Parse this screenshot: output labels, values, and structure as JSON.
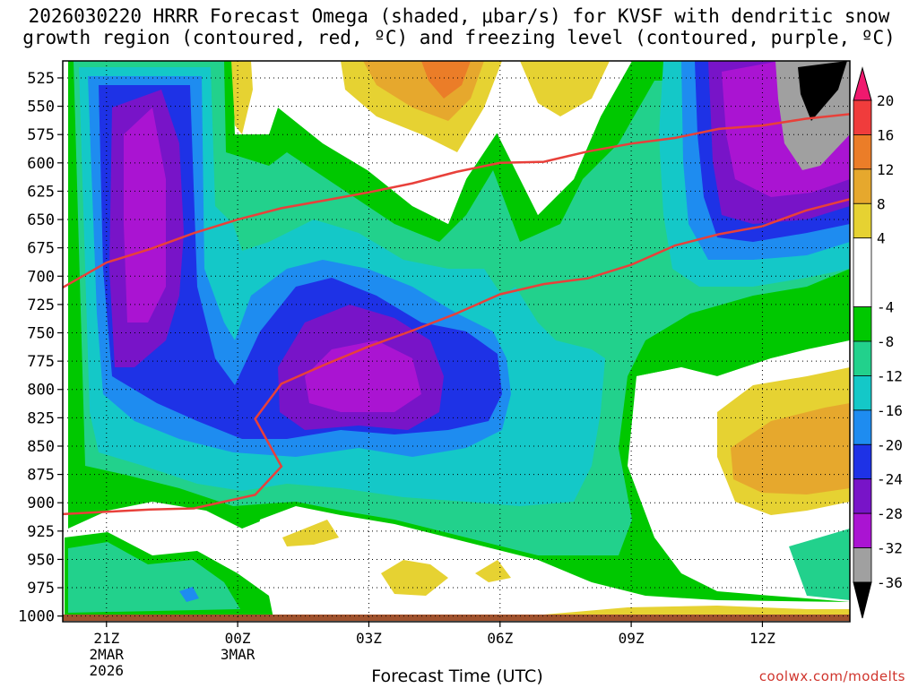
{
  "title": {
    "line1": "2026030220 HRRR Forecast Omega (shaded, μbar/s) for KVSF with dendritic snow",
    "line2": "growth region (contoured, red, ºC) and freezing level (contoured, purple, ºC)"
  },
  "credit": "coolwx.com/modelts",
  "chart_data": {
    "type": "heatmap",
    "title": "2026030220 HRRR Forecast Omega (shaded, μbar/s) for KVSF with dendritic snow growth region (contoured, red, ºC) and freezing level (contoured, purple, ºC)",
    "xlabel": "Forecast Time (UTC)",
    "ylabel": "",
    "y_axis": {
      "ticks": [
        525,
        550,
        575,
        600,
        625,
        650,
        675,
        700,
        725,
        750,
        775,
        800,
        825,
        850,
        875,
        900,
        925,
        950,
        975,
        1000
      ],
      "range": [
        510,
        1005
      ],
      "inverted": true,
      "grid": true
    },
    "x_axis": {
      "tick_labels": [
        {
          "hour": 21,
          "lines": [
            "21Z",
            "2MAR",
            "2026"
          ]
        },
        {
          "hour": 24,
          "lines": [
            "00Z",
            "3MAR"
          ]
        },
        {
          "hour": 27,
          "lines": [
            "03Z"
          ]
        },
        {
          "hour": 30,
          "lines": [
            "06Z"
          ]
        },
        {
          "hour": 33,
          "lines": [
            "09Z"
          ]
        },
        {
          "hour": 36,
          "lines": [
            "12Z"
          ]
        }
      ],
      "range_hours": [
        20,
        38
      ],
      "grid": true
    },
    "colorbar": {
      "ticks": [
        20,
        16,
        12,
        8,
        4,
        -4,
        -8,
        -12,
        -16,
        -20,
        -24,
        -28,
        -32,
        -36
      ],
      "bins": [
        {
          "from": 20,
          "to": 24,
          "color": "#f0196e"
        },
        {
          "from": 16,
          "to": 20,
          "color": "#f03c3c"
        },
        {
          "from": 12,
          "to": 16,
          "color": "#eb7d28"
        },
        {
          "from": 8,
          "to": 12,
          "color": "#e6a82d"
        },
        {
          "from": 4,
          "to": 8,
          "color": "#e6d232"
        },
        {
          "from": -4,
          "to": 4,
          "color": "#ffffff"
        },
        {
          "from": -8,
          "to": -4,
          "color": "#00c800"
        },
        {
          "from": -12,
          "to": -8,
          "color": "#22d18c"
        },
        {
          "from": -16,
          "to": -12,
          "color": "#14c8c8"
        },
        {
          "from": -20,
          "to": -16,
          "color": "#1e8cf0"
        },
        {
          "from": -24,
          "to": -20,
          "color": "#1e32e6"
        },
        {
          "from": -28,
          "to": -24,
          "color": "#7814c8"
        },
        {
          "from": -32,
          "to": -28,
          "color": "#aa14d2"
        },
        {
          "from": -36,
          "to": -32,
          "color": "#a0a0a0"
        },
        {
          "from": -40,
          "to": -36,
          "color": "#000000"
        }
      ]
    },
    "series": [
      {
        "color": "#e8403a",
        "points": [
          [
            20,
            710
          ],
          [
            21,
            688
          ],
          [
            22,
            676
          ],
          [
            23,
            662
          ],
          [
            24,
            650
          ],
          [
            25,
            640
          ],
          [
            26,
            633
          ],
          [
            27,
            626
          ],
          [
            28,
            618
          ],
          [
            29,
            608
          ],
          [
            30,
            600
          ],
          [
            31,
            599
          ],
          [
            32,
            590
          ],
          [
            33,
            583
          ],
          [
            34,
            578
          ],
          [
            35,
            570
          ],
          [
            36,
            567
          ],
          [
            37,
            561
          ],
          [
            38,
            557
          ]
        ]
      },
      {
        "color": "#e8403a",
        "points": [
          [
            20,
            910
          ],
          [
            21,
            908
          ],
          [
            22,
            906
          ],
          [
            23,
            905
          ],
          [
            23.7,
            899
          ],
          [
            24.4,
            893
          ],
          [
            25,
            868
          ],
          [
            24.4,
            826
          ],
          [
            25,
            795
          ],
          [
            26,
            778
          ],
          [
            27,
            762
          ],
          [
            28,
            748
          ],
          [
            29,
            733
          ],
          [
            30,
            716
          ],
          [
            31,
            707
          ],
          [
            32,
            702
          ],
          [
            33,
            690
          ],
          [
            34,
            673
          ],
          [
            35,
            663
          ],
          [
            36,
            656
          ],
          [
            37,
            642
          ],
          [
            38,
            632
          ]
        ]
      }
    ],
    "omega_regions": [
      {
        "value_bin": -12,
        "color": "#22d18c",
        "label": "broad -8 to -12 band"
      }
    ]
  }
}
